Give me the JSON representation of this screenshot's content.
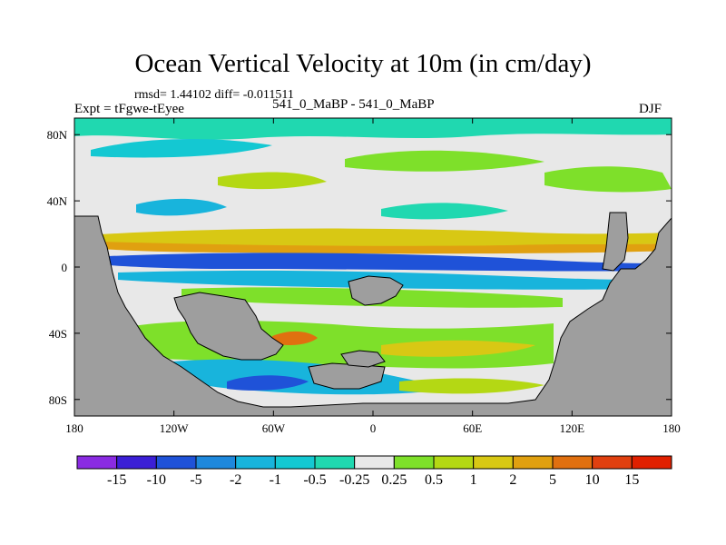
{
  "title": "Ocean Vertical Velocity at 10m (in cm/day)",
  "stats": "rmsd= 1.44102 diff= -0.011511",
  "left_label": "Expt = tFgwe-tEyee",
  "center_label": "541_0_MaBP - 541_0_MaBP",
  "right_label": "DJF",
  "chart_data": {
    "type": "heatmap",
    "title": "Ocean Vertical Velocity at 10m (in cm/day)",
    "variable": "Ocean vertical velocity at 10m",
    "units": "cm/day",
    "season": "DJF",
    "x_axis": {
      "range": [
        -180,
        180
      ],
      "ticks": [
        -180,
        -120,
        -60,
        0,
        60,
        120,
        180
      ],
      "tick_labels": [
        "180",
        "120W",
        "60W",
        "0",
        "60E",
        "120E",
        "180"
      ]
    },
    "y_axis": {
      "range": [
        -90,
        90
      ],
      "ticks": [
        80,
        40,
        0,
        -40,
        -80
      ],
      "tick_labels": [
        "80N",
        "40N",
        "0",
        "40S",
        "80S"
      ]
    },
    "colorbar": {
      "labels": [
        "-15",
        "-10",
        "-5",
        "-2",
        "-1",
        "-0.5",
        "-0.25",
        "0.25",
        "0.5",
        "1",
        "2",
        "5",
        "10",
        "15"
      ],
      "colors": [
        "#8a2be2",
        "#3b1fd6",
        "#1f52d8",
        "#1e88dc",
        "#18b4dc",
        "#14c8d2",
        "#20d8b0",
        "#e8e8e8",
        "#7ee02a",
        "#b4d814",
        "#d8c814",
        "#e0a010",
        "#e07010",
        "#e04010",
        "#e02000"
      ]
    },
    "missing_value_color": "#9e9e9e"
  }
}
